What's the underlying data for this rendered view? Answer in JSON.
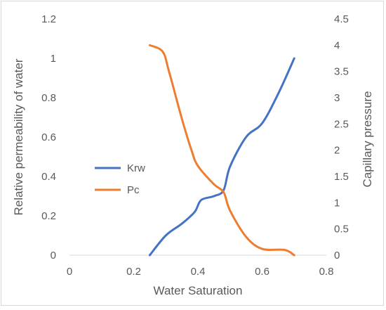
{
  "chart_data": {
    "type": "line",
    "title": "",
    "xlabel": "Water Saturation",
    "ylabel": "Relative permeability of water",
    "y2label": "Capillary pressure",
    "xlim": [
      0,
      0.8
    ],
    "ylim": [
      0,
      1.2
    ],
    "y2lim": [
      0,
      4.5
    ],
    "x_ticks": [
      0,
      0.2,
      0.4,
      0.6,
      0.8
    ],
    "x_tick_labels": [
      "0",
      "0.2",
      "0.4",
      "0.6",
      "0.8"
    ],
    "y_ticks": [
      0,
      0.2,
      0.4,
      0.6,
      0.8,
      1,
      1.2
    ],
    "y_tick_labels": [
      "0",
      "0.2",
      "0.4",
      "0.6",
      "0.8",
      "1",
      "1.2"
    ],
    "y2_ticks": [
      0,
      0.5,
      1,
      1.5,
      2,
      2.5,
      3,
      3.5,
      4,
      4.5
    ],
    "y2_tick_labels": [
      "0",
      "0.5",
      "1",
      "1.5",
      "2",
      "2.5",
      "3",
      "3.5",
      "4",
      "4.5"
    ],
    "grid": false,
    "legend_position": "center-left",
    "series": [
      {
        "name": "Krw",
        "axis": "left",
        "color": "#4472C4",
        "x": [
          0.25,
          0.3,
          0.35,
          0.39,
          0.41,
          0.45,
          0.48,
          0.5,
          0.55,
          0.6,
          0.65,
          0.7
        ],
        "y": [
          0.0,
          0.1,
          0.16,
          0.22,
          0.28,
          0.3,
          0.33,
          0.45,
          0.6,
          0.67,
          0.82,
          1.0
        ]
      },
      {
        "name": "Pc",
        "axis": "right",
        "color": "#ED7D31",
        "x": [
          0.25,
          0.29,
          0.31,
          0.35,
          0.38,
          0.4,
          0.45,
          0.48,
          0.5,
          0.55,
          0.6,
          0.67,
          0.7
        ],
        "y": [
          4.0,
          3.88,
          3.5,
          2.6,
          2.0,
          1.7,
          1.35,
          1.2,
          0.85,
          0.35,
          0.12,
          0.1,
          0.0
        ]
      }
    ]
  }
}
